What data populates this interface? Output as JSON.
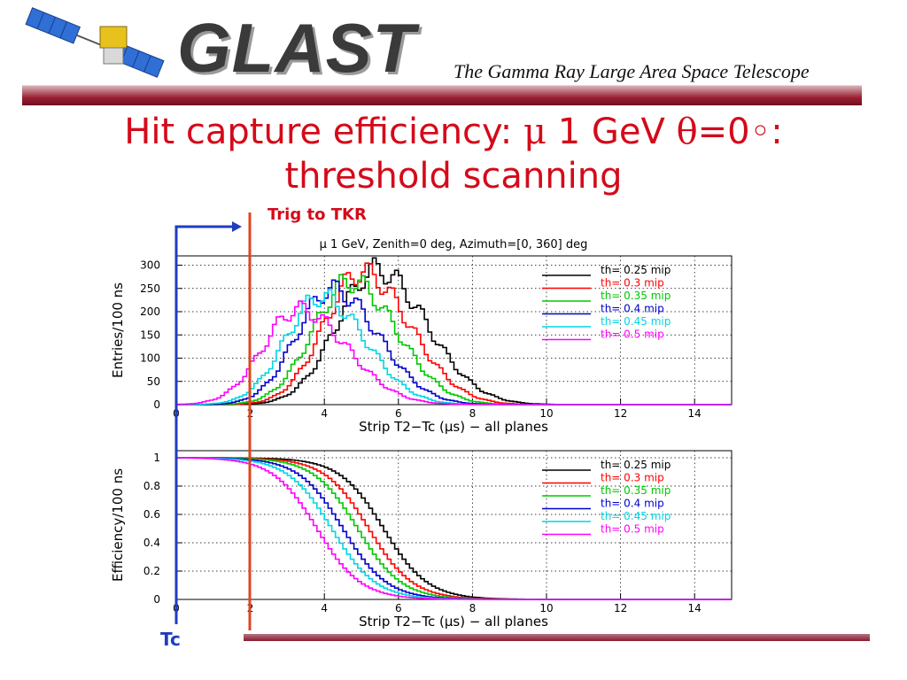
{
  "header": {
    "logo_text": "GLAST",
    "tagline": "The Gamma Ray Large Area Space Telescope"
  },
  "slide": {
    "title_part1": "Hit capture efficiency: ",
    "title_mu": "μ",
    "title_part2": " 1 GeV ",
    "title_theta": "θ",
    "title_part3": "=0",
    "title_deg": "◦",
    "title_part4": ":",
    "title_line2": "threshold scanning",
    "trig_label": "Trig to TKR",
    "tc_label": "Tc"
  },
  "colors": {
    "title_red": "#d40a1a",
    "header_bar": "#9c1f32",
    "tc_arrow_blue": "#1f3cc0",
    "marker_orange": "#e0451f"
  },
  "chart_data": [
    {
      "type": "line",
      "title": "μ 1 GeV, Zenith=0 deg, Azimuth=[0, 360] deg",
      "xlabel": "Strip T2−Tc (μs) − all planes",
      "ylabel": "Entries/100 ns",
      "xlim": [
        0,
        15
      ],
      "ylim": [
        0,
        320
      ],
      "xticks": [
        0,
        2,
        4,
        6,
        8,
        10,
        12,
        14
      ],
      "yticks": [
        0,
        50,
        100,
        150,
        200,
        250,
        300
      ],
      "grid": true,
      "legend": "top-right",
      "series": [
        {
          "name": "th= 0.25 mip",
          "color": "#000000",
          "peak": 5.4,
          "height": 290,
          "sigma_left": 1.05,
          "sigma_right": 1.35
        },
        {
          "name": "th= 0.3 mip",
          "color": "#ff0000",
          "peak": 5.0,
          "height": 285,
          "sigma_left": 1.0,
          "sigma_right": 1.3
        },
        {
          "name": "th= 0.35 mip",
          "color": "#00c800",
          "peak": 4.7,
          "height": 265,
          "sigma_left": 1.0,
          "sigma_right": 1.25
        },
        {
          "name": "th= 0.4 mip",
          "color": "#0000cc",
          "peak": 4.2,
          "height": 248,
          "sigma_left": 0.95,
          "sigma_right": 1.25
        },
        {
          "name": "th= 0.45 mip",
          "color": "#00d6e6",
          "peak": 3.9,
          "height": 232,
          "sigma_left": 0.95,
          "sigma_right": 1.2
        },
        {
          "name": "th= 0.5 mip",
          "color": "#ff00ff",
          "peak": 3.3,
          "height": 205,
          "sigma_left": 0.95,
          "sigma_right": 1.3
        }
      ]
    },
    {
      "type": "line",
      "title": "",
      "xlabel": "Strip T2−Tc (μs) − all planes",
      "ylabel": "Efficiency/100 ns",
      "xlim": [
        0,
        15
      ],
      "ylim": [
        0,
        1.05
      ],
      "xticks": [
        0,
        2,
        4,
        6,
        8,
        10,
        12,
        14
      ],
      "yticks": [
        0,
        0.2,
        0.4,
        0.6,
        0.8,
        1
      ],
      "grid": true,
      "legend": "top-right",
      "series": [
        {
          "name": "th= 0.25 mip",
          "color": "#000000",
          "midpoint": 5.6,
          "width": 0.95
        },
        {
          "name": "th= 0.3 mip",
          "color": "#ff0000",
          "midpoint": 5.2,
          "width": 0.95
        },
        {
          "name": "th= 0.35 mip",
          "color": "#00c800",
          "midpoint": 4.9,
          "width": 0.95
        },
        {
          "name": "th= 0.4 mip",
          "color": "#0000cc",
          "midpoint": 4.5,
          "width": 0.95
        },
        {
          "name": "th= 0.45 mip",
          "color": "#00d6e6",
          "midpoint": 4.2,
          "width": 0.95
        },
        {
          "name": "th= 0.5 mip",
          "color": "#ff00ff",
          "midpoint": 3.8,
          "width": 0.95
        }
      ]
    }
  ]
}
